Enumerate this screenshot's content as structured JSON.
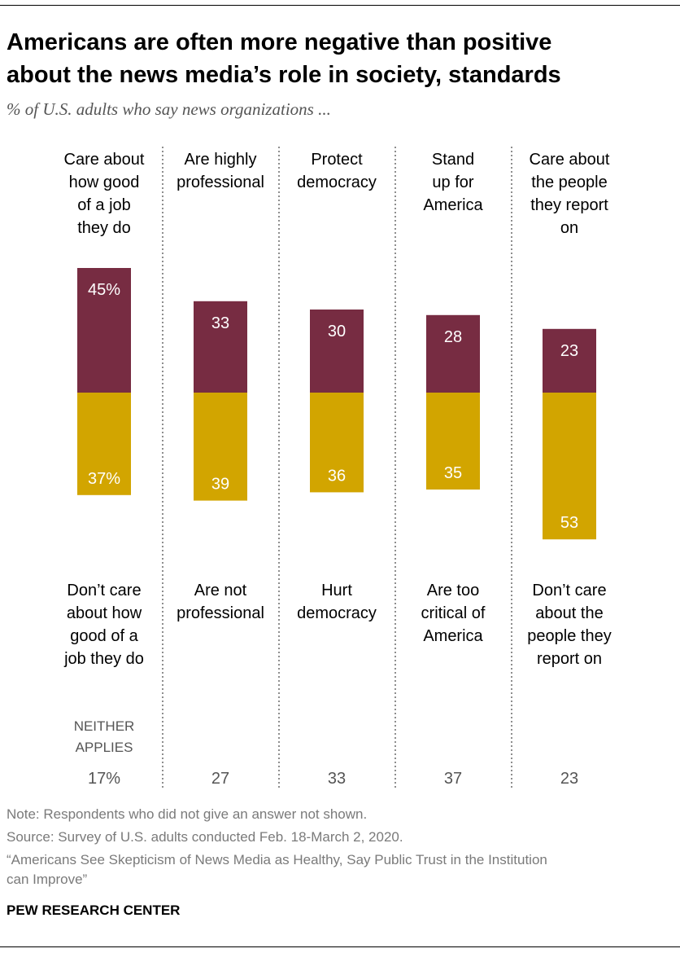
{
  "header": {
    "title_line1": "Americans are often more negative than positive",
    "title_line2": "about the news media’s role in society, standards",
    "subtitle": "% of U.S. adults who say news organizations ..."
  },
  "chart_data": {
    "type": "bar",
    "layout": "diverging-stacked",
    "title": "Americans are often more negative than positive about the news media’s role in society, standards",
    "categories": [
      "Care about how good of a job they do",
      "Are highly professional",
      "Protect democracy",
      "Stand up for America",
      "Care about the people they report on"
    ],
    "positive_labels": [
      [
        "Care about",
        "how good",
        "of a job",
        "they do"
      ],
      [
        "Are highly",
        "professional"
      ],
      [
        "Protect",
        "democracy"
      ],
      [
        "Stand",
        "up for",
        "America"
      ],
      [
        "Care about",
        "the people",
        "they report",
        "on"
      ]
    ],
    "negative_labels": [
      [
        "Don’t care",
        "about how",
        "good of a",
        "job they do"
      ],
      [
        "Are not",
        "professional"
      ],
      [
        "Hurt",
        "democracy"
      ],
      [
        "Are too",
        "critical of",
        "America"
      ],
      [
        "Don’t care",
        "about the",
        "people they",
        "report on"
      ]
    ],
    "series": [
      {
        "name": "Positive",
        "color": "#772c42",
        "values": [
          45,
          33,
          30,
          28,
          23
        ],
        "value_labels": [
          "45%",
          "33",
          "30",
          "28",
          "23"
        ]
      },
      {
        "name": "Negative",
        "color": "#d2a500",
        "values": [
          37,
          39,
          36,
          35,
          53
        ],
        "value_labels": [
          "37%",
          "39",
          "36",
          "35",
          "53"
        ]
      }
    ],
    "neither": {
      "label_line1": "NEITHER",
      "label_line2": "APPLIES",
      "values": [
        17,
        27,
        33,
        37,
        23
      ],
      "value_labels": [
        "17%",
        "27",
        "33",
        "37",
        "23"
      ]
    }
  },
  "footer": {
    "note": "Note: Respondents who did not give an answer not shown.",
    "source": "Source: Survey of U.S. adults conducted Feb. 18-March 2, 2020.",
    "report_line1": "“Americans See Skepticism of News Media as Healthy, Say Public Trust in the Institution",
    "report_line2": "can Improve”",
    "brand": "PEW RESEARCH CENTER"
  },
  "colors": {
    "positive": "#772c42",
    "negative": "#d2a500",
    "divider": "#444444",
    "label": "#000000",
    "neither": "#555555"
  }
}
